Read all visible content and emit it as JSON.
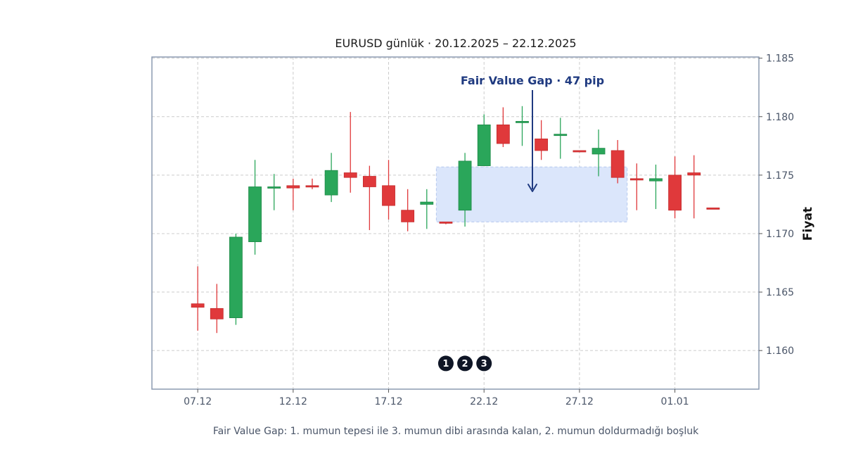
{
  "chart_data": {
    "type": "candlestick",
    "title": "EURUSD günlük · 20.12.2025 – 22.12.2025",
    "ylabel": "Fiyat",
    "ylim": [
      1.1567,
      1.1851
    ],
    "y_ticks": [
      "1.160",
      "1.165",
      "1.170",
      "1.175",
      "1.180",
      "1.185"
    ],
    "x_ticks": [
      "07.12",
      "12.12",
      "17.12",
      "22.12",
      "27.12",
      "01.01"
    ],
    "x_range": [
      -2.4,
      29.4
    ],
    "grid": true,
    "colors": {
      "up": "#2aa65a",
      "down": "#e0393b",
      "frame": "#8c9ab0",
      "gap_fill": "#dbe6fb",
      "annotation": "#1f3a80",
      "marker": "#0f1626"
    },
    "candles": [
      {
        "o": 1.164,
        "h": 1.1672,
        "l": 1.1617,
        "c": 1.1637
      },
      {
        "o": 1.1636,
        "h": 1.1657,
        "l": 1.1615,
        "c": 1.1627
      },
      {
        "o": 1.1628,
        "h": 1.17,
        "l": 1.1622,
        "c": 1.1697
      },
      {
        "o": 1.1693,
        "h": 1.1763,
        "l": 1.1682,
        "c": 1.174
      },
      {
        "o": 1.1739,
        "h": 1.1751,
        "l": 1.172,
        "c": 1.174
      },
      {
        "o": 1.1741,
        "h": 1.1747,
        "l": 1.172,
        "c": 1.1739
      },
      {
        "o": 1.1741,
        "h": 1.1747,
        "l": 1.1738,
        "c": 1.174
      },
      {
        "o": 1.1733,
        "h": 1.1769,
        "l": 1.1727,
        "c": 1.1754
      },
      {
        "o": 1.1752,
        "h": 1.1804,
        "l": 1.1735,
        "c": 1.1748
      },
      {
        "o": 1.1749,
        "h": 1.1758,
        "l": 1.1703,
        "c": 1.174
      },
      {
        "o": 1.1741,
        "h": 1.1763,
        "l": 1.1712,
        "c": 1.1724
      },
      {
        "o": 1.172,
        "h": 1.1738,
        "l": 1.1702,
        "c": 1.171
      },
      {
        "o": 1.1725,
        "h": 1.1738,
        "l": 1.1704,
        "c": 1.1727
      },
      {
        "o": 1.171,
        "h": 1.171,
        "l": 1.1708,
        "c": 1.1709
      },
      {
        "o": 1.172,
        "h": 1.1769,
        "l": 1.1706,
        "c": 1.1762
      },
      {
        "o": 1.1758,
        "h": 1.1802,
        "l": 1.1758,
        "c": 1.1793
      },
      {
        "o": 1.1793,
        "h": 1.1808,
        "l": 1.1774,
        "c": 1.1777
      },
      {
        "o": 1.1796,
        "h": 1.1809,
        "l": 1.1775,
        "c": 1.1796
      },
      {
        "o": 1.1781,
        "h": 1.1797,
        "l": 1.1763,
        "c": 1.1771
      },
      {
        "o": 1.1784,
        "h": 1.1799,
        "l": 1.1764,
        "c": 1.1785
      },
      {
        "o": 1.1771,
        "h": 1.1771,
        "l": 1.177,
        "c": 1.177
      },
      {
        "o": 1.1768,
        "h": 1.1789,
        "l": 1.1749,
        "c": 1.1773
      },
      {
        "o": 1.1771,
        "h": 1.178,
        "l": 1.1743,
        "c": 1.1748
      },
      {
        "o": 1.1747,
        "h": 1.176,
        "l": 1.172,
        "c": 1.1746
      },
      {
        "o": 1.1745,
        "h": 1.1759,
        "l": 1.1721,
        "c": 1.1747
      },
      {
        "o": 1.175,
        "h": 1.1766,
        "l": 1.1713,
        "c": 1.172
      },
      {
        "o": 1.1752,
        "h": 1.1767,
        "l": 1.1713,
        "c": 1.175
      },
      {
        "o": 1.1722,
        "h": 1.1722,
        "l": 1.1721,
        "c": 1.1721
      }
    ],
    "fvg": {
      "top": 1.1757,
      "bottom": 1.171,
      "x_start": 12.5,
      "x_end": 22.5,
      "label": "Fair Value Gap · 47 pip"
    },
    "markers": [
      {
        "label": "1",
        "x": 13,
        "y": 1.1589
      },
      {
        "label": "2",
        "x": 14,
        "y": 1.1589
      },
      {
        "label": "3",
        "x": 15,
        "y": 1.1589
      }
    ],
    "caption": "Fair Value Gap: 1. mumun tepesi ile 3. mumun dibi arasında kalan, 2. mumun doldurmadığı boşluk"
  }
}
